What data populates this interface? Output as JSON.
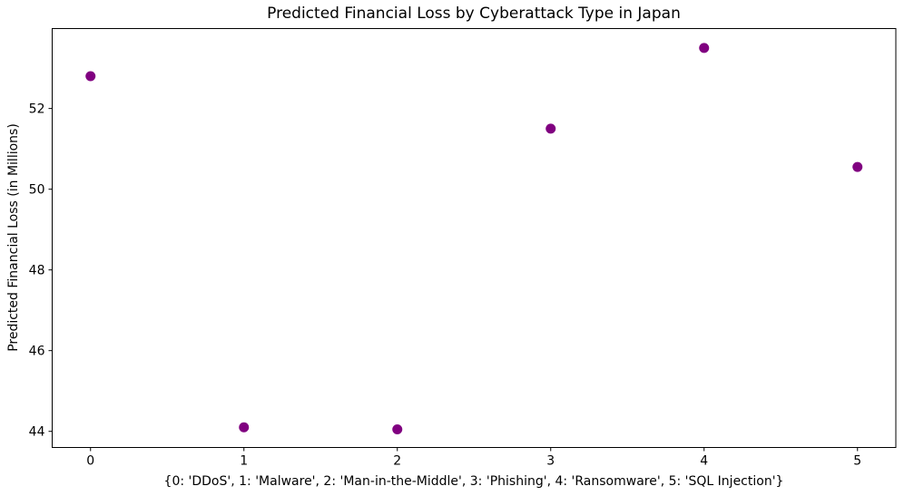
{
  "chart_data": {
    "type": "scatter",
    "title": "Predicted Financial Loss by Cyberattack Type in Japan",
    "xlabel": "{0: 'DDoS', 1: 'Malware', 2: 'Man-in-the-Middle', 3: 'Phishing', 4: 'Ransomware', 5: 'SQL Injection'}",
    "ylabel": "Predicted Financial Loss (in Millions)",
    "x_category_map": {
      "0": "DDoS",
      "1": "Malware",
      "2": "Man-in-the-Middle",
      "3": "Phishing",
      "4": "Ransomware",
      "5": "SQL Injection"
    },
    "points": [
      {
        "x": 0,
        "label": "DDoS",
        "y": 52.8
      },
      {
        "x": 1,
        "label": "Malware",
        "y": 44.1
      },
      {
        "x": 2,
        "label": "Man-in-the-Middle",
        "y": 44.05
      },
      {
        "x": 3,
        "label": "Phishing",
        "y": 51.5
      },
      {
        "x": 4,
        "label": "Ransomware",
        "y": 53.5
      },
      {
        "x": 5,
        "label": "SQL Injection",
        "y": 50.55
      }
    ],
    "xticks": [
      "0",
      "1",
      "2",
      "3",
      "4",
      "5"
    ],
    "yticks": [
      "44",
      "46",
      "48",
      "50",
      "52"
    ],
    "xlim": [
      -0.25,
      5.25
    ],
    "ylim": [
      43.6,
      53.98
    ],
    "grid": false,
    "legend": false,
    "marker": {
      "shape": "circle",
      "color": "#800080",
      "radius": 5.5
    },
    "axis_color": "#000000",
    "text_color": "#000000",
    "background_color": "#ffffff"
  }
}
